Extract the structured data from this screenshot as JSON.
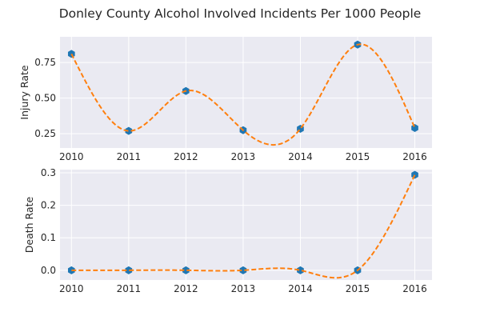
{
  "figure": {
    "title": "Donley County Alcohol Involved Incidents Per 1000 People"
  },
  "colors": {
    "plot_background": "#eaeaf2",
    "grid": "#ffffff",
    "marker": "#1f77b4",
    "curve": "#ff7f0e"
  },
  "chart_data": [
    {
      "type": "line",
      "title": "",
      "xlabel": "",
      "ylabel": "Injury Rate",
      "x": [
        2010,
        2011,
        2012,
        2013,
        2014,
        2015,
        2016
      ],
      "x_tick_labels": [
        "2010",
        "2011",
        "2012",
        "2013",
        "2014",
        "2015",
        "2016"
      ],
      "y_ticks": [
        0.25,
        0.5,
        0.75
      ],
      "y_tick_labels": [
        "0.25",
        "0.50",
        "0.75"
      ],
      "xlim": [
        2009.8,
        2016.3
      ],
      "ylim": [
        0.15,
        0.93
      ],
      "grid": true,
      "series": [
        {
          "style": "markers",
          "marker": "hexagon",
          "values": [
            0.81,
            0.27,
            0.55,
            0.275,
            0.285,
            0.875,
            0.29
          ]
        },
        {
          "style": "dashed-spline",
          "values": [
            0.81,
            0.27,
            0.55,
            0.275,
            0.285,
            0.875,
            0.29
          ]
        }
      ]
    },
    {
      "type": "line",
      "title": "",
      "xlabel": "",
      "ylabel": "Death Rate",
      "x": [
        2010,
        2011,
        2012,
        2013,
        2014,
        2015,
        2016
      ],
      "x_tick_labels": [
        "2010",
        "2011",
        "2012",
        "2013",
        "2014",
        "2015",
        "2016"
      ],
      "y_ticks": [
        0.0,
        0.1,
        0.2,
        0.3
      ],
      "y_tick_labels": [
        "0.0",
        "0.1",
        "0.2",
        "0.3"
      ],
      "xlim": [
        2009.8,
        2016.3
      ],
      "ylim": [
        -0.03,
        0.31
      ],
      "grid": true,
      "series": [
        {
          "style": "markers",
          "marker": "hexagon",
          "values": [
            0.0,
            0.0,
            0.0,
            0.0,
            0.0,
            0.0,
            0.294
          ]
        },
        {
          "style": "dashed-spline",
          "values": [
            0.0,
            0.0,
            0.0,
            0.0,
            0.0,
            0.0,
            0.294
          ]
        }
      ]
    }
  ]
}
